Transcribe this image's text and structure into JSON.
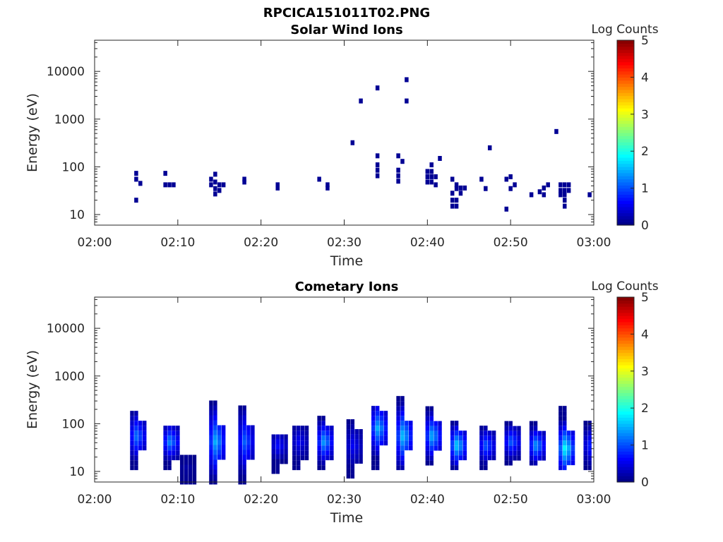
{
  "figure": {
    "title": "RPCICA151011T02.PNG"
  },
  "chart_data": [
    {
      "type": "heatmap",
      "title": "Solar Wind Ions",
      "xlabel": "Time",
      "ylabel": "Energy (eV)",
      "x_scale": "time",
      "y_scale": "log",
      "xlim": [
        "02:00",
        "03:00"
      ],
      "ylim": [
        6,
        45000
      ],
      "x_ticks": [
        "02:00",
        "02:10",
        "02:20",
        "02:30",
        "02:40",
        "02:50",
        "03:00"
      ],
      "y_ticks": [
        "10",
        "100",
        "1000",
        "10000"
      ],
      "colorbar": {
        "label": "Log Counts",
        "range": [
          0,
          5
        ],
        "ticks": [
          "0",
          "1",
          "2",
          "3",
          "4",
          "5"
        ],
        "colormap": "jet"
      },
      "cells": [
        {
          "t": "02:05",
          "e": 73,
          "z": 0.1
        },
        {
          "t": "02:05",
          "e": 55,
          "z": 0.1
        },
        {
          "t": "02:05",
          "e": 20,
          "z": 0.1
        },
        {
          "t": "02:05:30",
          "e": 45,
          "z": 0.1
        },
        {
          "t": "02:08:30",
          "e": 73,
          "z": 0.1
        },
        {
          "t": "02:08:30",
          "e": 42,
          "z": 0.1
        },
        {
          "t": "02:09",
          "e": 42,
          "z": 0.1
        },
        {
          "t": "02:09:30",
          "e": 42,
          "z": 0.1
        },
        {
          "t": "02:14",
          "e": 55,
          "z": 0.1
        },
        {
          "t": "02:14",
          "e": 42,
          "z": 0.1
        },
        {
          "t": "02:14:30",
          "e": 70,
          "z": 0.1
        },
        {
          "t": "02:14:30",
          "e": 48,
          "z": 0.1
        },
        {
          "t": "02:14:30",
          "e": 35,
          "z": 0.1
        },
        {
          "t": "02:14:30",
          "e": 27,
          "z": 0.1
        },
        {
          "t": "02:15",
          "e": 42,
          "z": 0.1
        },
        {
          "t": "02:15",
          "e": 32,
          "z": 0.1
        },
        {
          "t": "02:15:30",
          "e": 42,
          "z": 0.1
        },
        {
          "t": "02:18",
          "e": 55,
          "z": 0.1
        },
        {
          "t": "02:18",
          "e": 48,
          "z": 0.1
        },
        {
          "t": "02:22",
          "e": 42,
          "z": 0.1
        },
        {
          "t": "02:22",
          "e": 36,
          "z": 0.1
        },
        {
          "t": "02:27",
          "e": 55,
          "z": 0.1
        },
        {
          "t": "02:28",
          "e": 42,
          "z": 0.1
        },
        {
          "t": "02:28",
          "e": 36,
          "z": 0.1
        },
        {
          "t": "02:31",
          "e": 320,
          "z": 0.1
        },
        {
          "t": "02:32",
          "e": 2400,
          "z": 0.1
        },
        {
          "t": "02:34",
          "e": 4500,
          "z": 0.1
        },
        {
          "t": "02:34",
          "e": 170,
          "z": 0.1
        },
        {
          "t": "02:34",
          "e": 110,
          "z": 0.1
        },
        {
          "t": "02:34",
          "e": 85,
          "z": 0.1
        },
        {
          "t": "02:34",
          "e": 65,
          "z": 0.1
        },
        {
          "t": "02:36:30",
          "e": 170,
          "z": 0.1
        },
        {
          "t": "02:36:30",
          "e": 85,
          "z": 0.1
        },
        {
          "t": "02:36:30",
          "e": 65,
          "z": 0.1
        },
        {
          "t": "02:36:30",
          "e": 50,
          "z": 0.1
        },
        {
          "t": "02:37",
          "e": 130,
          "z": 0.1
        },
        {
          "t": "02:37:30",
          "e": 6700,
          "z": 0.1
        },
        {
          "t": "02:37:30",
          "e": 2400,
          "z": 0.1
        },
        {
          "t": "02:40",
          "e": 80,
          "z": 0.1
        },
        {
          "t": "02:40",
          "e": 62,
          "z": 0.1
        },
        {
          "t": "02:40",
          "e": 48,
          "z": 0.1
        },
        {
          "t": "02:40:30",
          "e": 110,
          "z": 0.1
        },
        {
          "t": "02:40:30",
          "e": 80,
          "z": 0.1
        },
        {
          "t": "02:40:30",
          "e": 62,
          "z": 0.1
        },
        {
          "t": "02:40:30",
          "e": 48,
          "z": 0.1
        },
        {
          "t": "02:41",
          "e": 62,
          "z": 0.1
        },
        {
          "t": "02:41",
          "e": 42,
          "z": 0.1
        },
        {
          "t": "02:41:30",
          "e": 150,
          "z": 0.1
        },
        {
          "t": "02:43",
          "e": 55,
          "z": 0.1
        },
        {
          "t": "02:43",
          "e": 28,
          "z": 0.1
        },
        {
          "t": "02:43",
          "e": 20,
          "z": 0.1
        },
        {
          "t": "02:43",
          "e": 15,
          "z": 0.1
        },
        {
          "t": "02:43:30",
          "e": 42,
          "z": 0.1
        },
        {
          "t": "02:43:30",
          "e": 35,
          "z": 0.1
        },
        {
          "t": "02:43:30",
          "e": 20,
          "z": 0.1
        },
        {
          "t": "02:43:30",
          "e": 15,
          "z": 0.1
        },
        {
          "t": "02:44",
          "e": 36,
          "z": 0.1
        },
        {
          "t": "02:44",
          "e": 28,
          "z": 0.1
        },
        {
          "t": "02:44:30",
          "e": 36,
          "z": 0.1
        },
        {
          "t": "02:46:30",
          "e": 55,
          "z": 0.1
        },
        {
          "t": "02:47",
          "e": 35,
          "z": 0.1
        },
        {
          "t": "02:47:30",
          "e": 250,
          "z": 0.1
        },
        {
          "t": "02:49:30",
          "e": 55,
          "z": 0.1
        },
        {
          "t": "02:49:30",
          "e": 13,
          "z": 0.1
        },
        {
          "t": "02:50",
          "e": 62,
          "z": 0.1
        },
        {
          "t": "02:50",
          "e": 35,
          "z": 0.1
        },
        {
          "t": "02:50:30",
          "e": 42,
          "z": 0.1
        },
        {
          "t": "02:52:30",
          "e": 26,
          "z": 0.1
        },
        {
          "t": "02:53:30",
          "e": 30,
          "z": 0.1
        },
        {
          "t": "02:54",
          "e": 36,
          "z": 0.1
        },
        {
          "t": "02:54",
          "e": 26,
          "z": 0.1
        },
        {
          "t": "02:54:30",
          "e": 42,
          "z": 0.1
        },
        {
          "t": "02:55:30",
          "e": 550,
          "z": 0.1
        },
        {
          "t": "02:56",
          "e": 42,
          "z": 0.1
        },
        {
          "t": "02:56",
          "e": 32,
          "z": 0.1
        },
        {
          "t": "02:56",
          "e": 26,
          "z": 0.1
        },
        {
          "t": "02:56:30",
          "e": 42,
          "z": 0.1
        },
        {
          "t": "02:56:30",
          "e": 32,
          "z": 0.1
        },
        {
          "t": "02:56:30",
          "e": 26,
          "z": 0.1
        },
        {
          "t": "02:56:30",
          "e": 20,
          "z": 0.1
        },
        {
          "t": "02:56:30",
          "e": 15,
          "z": 0.1
        },
        {
          "t": "02:57",
          "e": 42,
          "z": 0.1
        },
        {
          "t": "02:57",
          "e": 32,
          "z": 0.1
        },
        {
          "t": "02:59:30",
          "e": 26,
          "z": 0.1
        },
        {
          "t": "03:00",
          "e": 32,
          "z": 0.1
        }
      ]
    },
    {
      "type": "heatmap",
      "title": "Cometary Ions",
      "xlabel": "Time",
      "ylabel": "Energy (eV)",
      "x_scale": "time",
      "y_scale": "log",
      "xlim": [
        "02:00",
        "03:00"
      ],
      "ylim": [
        6,
        45000
      ],
      "x_ticks": [
        "02:00",
        "02:10",
        "02:20",
        "02:30",
        "02:40",
        "02:50",
        "03:00"
      ],
      "y_ticks": [
        "10",
        "100",
        "1000",
        "10000"
      ],
      "colorbar": {
        "label": "Log Counts",
        "range": [
          0,
          5
        ],
        "ticks": [
          "0",
          "1",
          "2",
          "3",
          "4",
          "5"
        ],
        "colormap": "jet"
      },
      "bursts": [
        {
          "t": "02:05",
          "e_low": 12,
          "e_high": 180,
          "e_peak": 55,
          "z_peak": 1.2
        },
        {
          "t": "02:09",
          "e_low": 12,
          "e_high": 100,
          "e_peak": 42,
          "z_peak": 1.3
        },
        {
          "t": "02:11",
          "e_low": 6,
          "e_high": 20,
          "e_peak": 12,
          "z_peak": 0.2
        },
        {
          "t": "02:14:30",
          "e_low": 6,
          "e_high": 300,
          "e_peak": 42,
          "z_peak": 1.5
        },
        {
          "t": "02:18",
          "e_low": 6,
          "e_high": 230,
          "e_peak": 42,
          "z_peak": 1.1
        },
        {
          "t": "02:22",
          "e_low": 10,
          "e_high": 60,
          "e_peak": 35,
          "z_peak": 0.7
        },
        {
          "t": "02:24:30",
          "e_low": 12,
          "e_high": 100,
          "e_peak": 42,
          "z_peak": 0.6
        },
        {
          "t": "02:27:30",
          "e_low": 12,
          "e_high": 140,
          "e_peak": 42,
          "z_peak": 1.4
        },
        {
          "t": "02:31",
          "e_low": 8,
          "e_high": 120,
          "e_peak": 35,
          "z_peak": 0.6
        },
        {
          "t": "02:34",
          "e_low": 12,
          "e_high": 260,
          "e_peak": 80,
          "z_peak": 1.5
        },
        {
          "t": "02:37",
          "e_low": 12,
          "e_high": 420,
          "e_peak": 55,
          "z_peak": 1.6
        },
        {
          "t": "02:40:30",
          "e_low": 15,
          "e_high": 230,
          "e_peak": 55,
          "z_peak": 1.5
        },
        {
          "t": "02:43:30",
          "e_low": 12,
          "e_high": 130,
          "e_peak": 35,
          "z_peak": 1.7
        },
        {
          "t": "02:47",
          "e_low": 12,
          "e_high": 90,
          "e_peak": 35,
          "z_peak": 1.1
        },
        {
          "t": "02:50",
          "e_low": 15,
          "e_high": 110,
          "e_peak": 42,
          "z_peak": 1.1
        },
        {
          "t": "02:53",
          "e_low": 15,
          "e_high": 120,
          "e_peak": 35,
          "z_peak": 1.4
        },
        {
          "t": "02:56:30",
          "e_low": 12,
          "e_high": 250,
          "e_peak": 30,
          "z_peak": 1.9
        },
        {
          "t": "02:59:30",
          "e_low": 12,
          "e_high": 110,
          "e_peak": 35,
          "z_peak": 0.8
        }
      ]
    }
  ]
}
